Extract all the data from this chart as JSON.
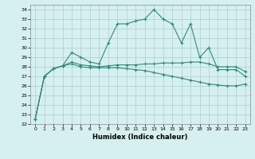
{
  "title": "",
  "xlabel": "Humidex (Indice chaleur)",
  "x": [
    0,
    1,
    2,
    3,
    4,
    5,
    6,
    7,
    8,
    9,
    10,
    11,
    12,
    13,
    14,
    15,
    16,
    17,
    18,
    19,
    20,
    21,
    22,
    23
  ],
  "ylim": [
    22,
    34.5
  ],
  "yticks": [
    22,
    23,
    24,
    25,
    26,
    27,
    28,
    29,
    30,
    31,
    32,
    33,
    34
  ],
  "line1": [
    22.5,
    27.0,
    27.8,
    28.1,
    29.5,
    29.0,
    28.5,
    28.3,
    30.5,
    32.5,
    32.5,
    32.8,
    33.0,
    34.0,
    33.0,
    32.5,
    30.5,
    32.5,
    29.0,
    30.0,
    27.7,
    27.7,
    27.7,
    27.0
  ],
  "line2": [
    22.5,
    27.0,
    27.8,
    28.1,
    28.5,
    28.2,
    28.1,
    28.0,
    28.1,
    28.2,
    28.2,
    28.2,
    28.3,
    28.3,
    28.4,
    28.4,
    28.4,
    28.5,
    28.5,
    28.3,
    28.0,
    28.0,
    28.0,
    27.5
  ],
  "line3": [
    22.5,
    27.0,
    27.8,
    28.1,
    28.3,
    28.0,
    27.9,
    27.9,
    27.9,
    27.9,
    27.8,
    27.7,
    27.6,
    27.4,
    27.2,
    27.0,
    26.8,
    26.6,
    26.4,
    26.2,
    26.1,
    26.0,
    26.0,
    26.2
  ],
  "line_color": "#2e8b7a",
  "bg_color": "#d6f0ef",
  "grid_color": "#a8cece"
}
